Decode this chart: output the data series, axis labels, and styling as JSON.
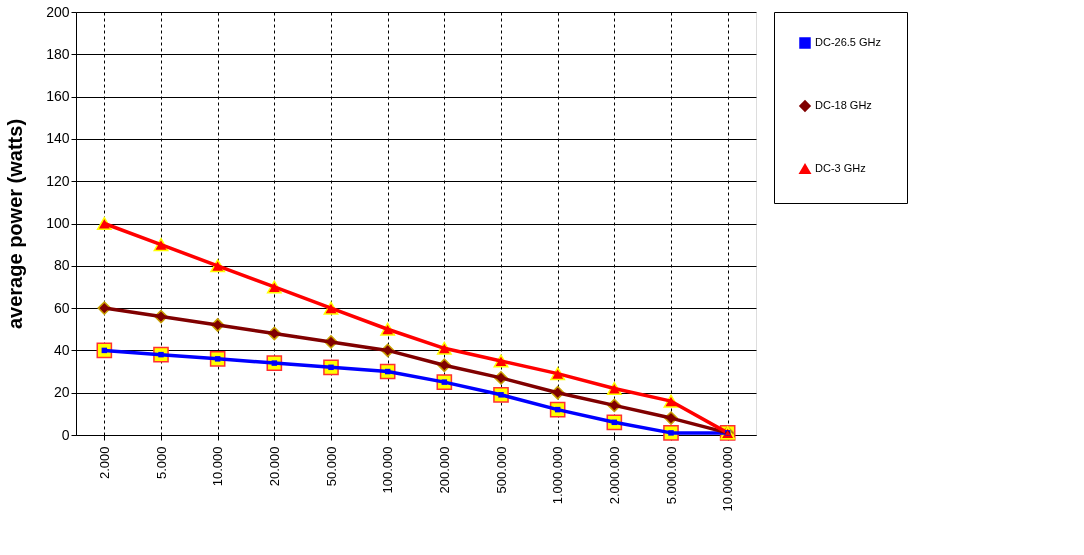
{
  "chart_data": {
    "type": "line",
    "ylabel": "average power (watts)",
    "categories": [
      "2.000",
      "5.000",
      "10.000",
      "20.000",
      "50.000",
      "100.000",
      "200.000",
      "500.000",
      "1.000.000",
      "2.000.000",
      "5.000.000",
      "10.000.000"
    ],
    "series": [
      {
        "name": "DC-26.5 GHz",
        "color": "#0000ff",
        "marker": "square",
        "values": [
          40,
          38,
          36,
          34,
          32,
          30,
          25,
          19,
          12,
          6,
          1,
          1
        ]
      },
      {
        "name": "DC-18 GHz",
        "color": "#800000",
        "marker": "diamond",
        "values": [
          60,
          56,
          52,
          48,
          44,
          40,
          33,
          27,
          20,
          14,
          8,
          1
        ]
      },
      {
        "name": "DC-3 GHz",
        "color": "#ff0000",
        "marker": "triangle",
        "values": [
          100,
          90,
          80,
          70,
          60,
          50,
          41,
          35,
          29,
          22,
          16,
          1
        ]
      }
    ],
    "ylim": [
      0,
      200
    ],
    "yticks": [
      0,
      20,
      40,
      60,
      80,
      100,
      120,
      140,
      160,
      180,
      200
    ],
    "grid": true,
    "legend": "right"
  }
}
